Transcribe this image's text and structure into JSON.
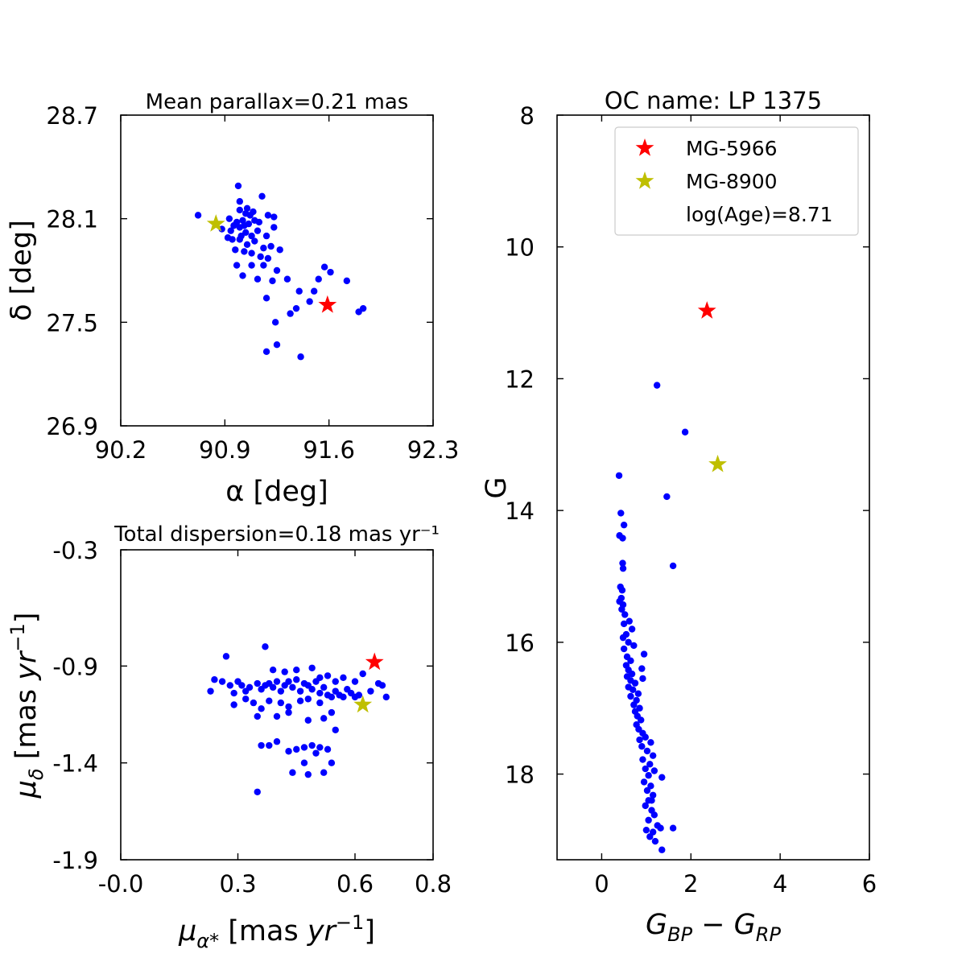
{
  "chart_data": [
    {
      "type": "scatter",
      "id": "position",
      "title": "Mean parallax=0.21 mas",
      "xlabel": "α [deg]",
      "ylabel": "δ [deg]",
      "xlim": [
        90.2,
        92.3
      ],
      "ylim": [
        26.9,
        28.7
      ],
      "xticks": [
        90.2,
        90.9,
        91.6,
        92.3
      ],
      "xtick_labels": [
        "90.2",
        "90.9",
        "91.6",
        "92.3"
      ],
      "yticks": [
        26.9,
        27.5,
        28.1,
        28.7
      ],
      "ytick_labels": [
        "26.9",
        "27.5",
        "28.1",
        "28.7"
      ],
      "series": [
        {
          "name": "members",
          "color": "#0000ff",
          "marker": "circle",
          "points": [
            [
              90.72,
              28.12
            ],
            [
              90.99,
              28.29
            ],
            [
              91.0,
              28.2
            ],
            [
              91.05,
              28.16
            ],
            [
              91.15,
              28.23
            ],
            [
              91.09,
              28.14
            ],
            [
              90.93,
              28.1
            ],
            [
              90.98,
              28.08
            ],
            [
              91.02,
              28.09
            ],
            [
              91.07,
              28.12
            ],
            [
              91.1,
              28.09
            ],
            [
              91.13,
              28.08
            ],
            [
              91.19,
              28.12
            ],
            [
              91.23,
              28.11
            ],
            [
              90.88,
              28.04
            ],
            [
              90.94,
              28.03
            ],
            [
              91.0,
              28.05
            ],
            [
              91.04,
              28.02
            ],
            [
              91.08,
              28.0
            ],
            [
              91.12,
              28.03
            ],
            [
              91.18,
              28.0
            ],
            [
              91.23,
              28.05
            ],
            [
              90.95,
              27.98
            ],
            [
              91.0,
              27.98
            ],
            [
              91.05,
              27.95
            ],
            [
              91.1,
              27.97
            ],
            [
              91.16,
              27.93
            ],
            [
              91.21,
              27.94
            ],
            [
              91.27,
              27.92
            ],
            [
              90.97,
              27.92
            ],
            [
              91.03,
              27.91
            ],
            [
              91.08,
              27.9
            ],
            [
              91.14,
              27.88
            ],
            [
              91.19,
              27.87
            ],
            [
              91.0,
              28.15
            ],
            [
              91.04,
              28.13
            ],
            [
              91.06,
              28.07
            ],
            [
              91.01,
              28.0
            ],
            [
              90.96,
              28.06
            ],
            [
              91.03,
              28.06
            ],
            [
              90.92,
              27.99
            ],
            [
              90.98,
              27.83
            ],
            [
              91.08,
              27.83
            ],
            [
              91.16,
              27.83
            ],
            [
              91.25,
              27.8
            ],
            [
              91.02,
              27.77
            ],
            [
              91.12,
              27.75
            ],
            [
              91.22,
              27.74
            ],
            [
              91.32,
              27.75
            ],
            [
              91.4,
              27.68
            ],
            [
              91.5,
              27.68
            ],
            [
              91.61,
              27.79
            ],
            [
              91.53,
              27.75
            ],
            [
              91.47,
              27.62
            ],
            [
              91.38,
              27.58
            ],
            [
              91.18,
              27.64
            ],
            [
              91.24,
              27.5
            ],
            [
              91.34,
              27.55
            ],
            [
              91.25,
              27.37
            ],
            [
              91.18,
              27.33
            ],
            [
              91.41,
              27.3
            ],
            [
              91.57,
              27.82
            ],
            [
              91.72,
              27.74
            ],
            [
              91.8,
              27.56
            ],
            [
              91.83,
              27.58
            ]
          ]
        },
        {
          "name": "MG-5966",
          "color": "#ff0000",
          "marker": "star",
          "points": [
            [
              91.59,
              27.6
            ]
          ]
        },
        {
          "name": "MG-8900",
          "color": "#bfbf00",
          "marker": "star",
          "points": [
            [
              90.84,
              28.07
            ]
          ]
        }
      ]
    },
    {
      "type": "scatter",
      "id": "proper-motion",
      "title": "Total dispersion=0.18 mas yr⁻¹",
      "xlabel": "μα* [mas yr⁻¹]",
      "ylabel": "μδ [mas yr⁻¹]",
      "xlim": [
        -0.0,
        0.8
      ],
      "ylim": [
        -1.9,
        -0.3
      ],
      "xticks": [
        0.0,
        0.3,
        0.6,
        0.8
      ],
      "xtick_labels": [
        "-0.0",
        "0.3",
        "0.6",
        "0.8"
      ],
      "yticks": [
        -1.9,
        -1.4,
        -0.9,
        -0.3
      ],
      "ytick_labels": [
        "-1.9",
        "-1.4",
        "-0.9",
        "-0.3"
      ],
      "series": [
        {
          "name": "members",
          "color": "#0000ff",
          "marker": "circle",
          "points": [
            [
              0.23,
              -1.03
            ],
            [
              0.24,
              -0.97
            ],
            [
              0.27,
              -0.85
            ],
            [
              0.26,
              -0.98
            ],
            [
              0.28,
              -1.0
            ],
            [
              0.29,
              -1.04
            ],
            [
              0.3,
              -0.98
            ],
            [
              0.31,
              -1.0
            ],
            [
              0.32,
              -1.03
            ],
            [
              0.33,
              -1.01
            ],
            [
              0.35,
              -0.99
            ],
            [
              0.36,
              -1.02
            ],
            [
              0.37,
              -1.0
            ],
            [
              0.38,
              -0.99
            ],
            [
              0.39,
              -1.01
            ],
            [
              0.4,
              -0.98
            ],
            [
              0.41,
              -1.03
            ],
            [
              0.42,
              -1.0
            ],
            [
              0.43,
              -0.98
            ],
            [
              0.44,
              -1.01
            ],
            [
              0.45,
              -0.97
            ],
            [
              0.46,
              -1.03
            ],
            [
              0.47,
              -0.99
            ],
            [
              0.48,
              -1.0
            ],
            [
              0.49,
              -1.02
            ],
            [
              0.5,
              -0.98
            ],
            [
              0.51,
              -1.04
            ],
            [
              0.52,
              -1.01
            ],
            [
              0.53,
              -1.05
            ],
            [
              0.54,
              -1.06
            ],
            [
              0.55,
              -1.03
            ],
            [
              0.56,
              -1.05
            ],
            [
              0.57,
              -1.06
            ],
            [
              0.58,
              -1.02
            ],
            [
              0.59,
              -1.04
            ],
            [
              0.6,
              -1.06
            ],
            [
              0.61,
              -1.05
            ],
            [
              0.64,
              -1.03
            ],
            [
              0.66,
              -0.99
            ],
            [
              0.67,
              -1.0
            ],
            [
              0.68,
              -1.06
            ],
            [
              0.29,
              -1.1
            ],
            [
              0.32,
              -1.07
            ],
            [
              0.34,
              -1.09
            ],
            [
              0.36,
              -1.12
            ],
            [
              0.38,
              -1.08
            ],
            [
              0.41,
              -1.09
            ],
            [
              0.43,
              -1.11
            ],
            [
              0.46,
              -1.08
            ],
            [
              0.48,
              -1.07
            ],
            [
              0.51,
              -1.09
            ],
            [
              0.35,
              -1.16
            ],
            [
              0.4,
              -1.16
            ],
            [
              0.43,
              -1.14
            ],
            [
              0.48,
              -1.18
            ],
            [
              0.52,
              -1.17
            ],
            [
              0.54,
              -1.14
            ],
            [
              0.37,
              -0.8
            ],
            [
              0.39,
              -0.92
            ],
            [
              0.42,
              -0.93
            ],
            [
              0.45,
              -0.92
            ],
            [
              0.49,
              -0.91
            ],
            [
              0.51,
              -0.96
            ],
            [
              0.53,
              -0.95
            ],
            [
              0.55,
              -0.98
            ],
            [
              0.57,
              -0.96
            ],
            [
              0.6,
              -0.98
            ],
            [
              0.62,
              -0.94
            ],
            [
              0.36,
              -1.31
            ],
            [
              0.38,
              -1.31
            ],
            [
              0.4,
              -1.29
            ],
            [
              0.43,
              -1.34
            ],
            [
              0.45,
              -1.33
            ],
            [
              0.47,
              -1.32
            ],
            [
              0.49,
              -1.31
            ],
            [
              0.51,
              -1.32
            ],
            [
              0.53,
              -1.33
            ],
            [
              0.54,
              -1.4
            ],
            [
              0.47,
              -1.4
            ],
            [
              0.5,
              -1.35
            ],
            [
              0.55,
              -1.23
            ],
            [
              0.44,
              -1.45
            ],
            [
              0.48,
              -1.46
            ],
            [
              0.52,
              -1.45
            ],
            [
              0.35,
              -1.55
            ]
          ]
        },
        {
          "name": "MG-5966",
          "color": "#ff0000",
          "marker": "star",
          "points": [
            [
              0.65,
              -0.88
            ]
          ]
        },
        {
          "name": "MG-8900",
          "color": "#bfbf00",
          "marker": "star",
          "points": [
            [
              0.62,
              -1.1
            ]
          ]
        }
      ]
    },
    {
      "type": "scatter",
      "id": "cmd",
      "title": "OC name: LP 1375",
      "xlabel": "GBP − GRP",
      "ylabel": "G",
      "xlim": [
        -1.0,
        6.0
      ],
      "ylim": [
        19.3,
        8.0
      ],
      "y_inverted": true,
      "xticks": [
        0,
        2,
        4,
        6
      ],
      "xtick_labels": [
        "0",
        "2",
        "4",
        "6"
      ],
      "yticks": [
        8,
        10,
        12,
        14,
        16,
        18
      ],
      "ytick_labels": [
        "8",
        "10",
        "12",
        "14",
        "16",
        "18"
      ],
      "legend": {
        "placement": "upper-right",
        "entries": [
          {
            "label": "MG-5966",
            "color": "#ff0000",
            "marker": "star"
          },
          {
            "label": "MG-8900",
            "color": "#bfbf00",
            "marker": "star"
          },
          {
            "label": "log(Age)=8.71",
            "color": "",
            "marker": "none"
          }
        ]
      },
      "series": [
        {
          "name": "members",
          "color": "#0000ff",
          "marker": "circle",
          "points": [
            [
              1.24,
              12.1
            ],
            [
              1.87,
              12.81
            ],
            [
              0.39,
              13.47
            ],
            [
              1.46,
              13.79
            ],
            [
              0.43,
              14.04
            ],
            [
              0.4,
              14.38
            ],
            [
              0.47,
              14.42
            ],
            [
              0.5,
              14.22
            ],
            [
              1.6,
              14.84
            ],
            [
              0.47,
              14.8
            ],
            [
              0.48,
              14.88
            ],
            [
              0.42,
              15.16
            ],
            [
              0.46,
              15.21
            ],
            [
              0.44,
              15.33
            ],
            [
              0.4,
              15.38
            ],
            [
              0.48,
              15.43
            ],
            [
              0.45,
              15.5
            ],
            [
              0.52,
              15.58
            ],
            [
              0.5,
              15.72
            ],
            [
              0.62,
              15.68
            ],
            [
              0.68,
              15.8
            ],
            [
              0.55,
              15.88
            ],
            [
              0.48,
              15.93
            ],
            [
              0.6,
              16.0
            ],
            [
              0.72,
              16.05
            ],
            [
              0.5,
              16.1
            ],
            [
              0.57,
              16.22
            ],
            [
              0.65,
              16.28
            ],
            [
              0.95,
              16.18
            ],
            [
              0.55,
              16.35
            ],
            [
              0.6,
              16.42
            ],
            [
              0.68,
              16.48
            ],
            [
              0.9,
              16.4
            ],
            [
              0.57,
              16.52
            ],
            [
              0.65,
              16.58
            ],
            [
              0.75,
              16.62
            ],
            [
              0.92,
              16.55
            ],
            [
              0.6,
              16.68
            ],
            [
              0.7,
              16.72
            ],
            [
              0.82,
              16.78
            ],
            [
              0.65,
              16.82
            ],
            [
              0.78,
              16.88
            ],
            [
              0.72,
              16.95
            ],
            [
              0.85,
              17.0
            ],
            [
              0.75,
              17.05
            ],
            [
              0.8,
              17.12
            ],
            [
              0.88,
              17.18
            ],
            [
              0.78,
              17.25
            ],
            [
              0.83,
              17.32
            ],
            [
              0.92,
              17.38
            ],
            [
              0.98,
              17.44
            ],
            [
              0.85,
              17.48
            ],
            [
              1.1,
              17.52
            ],
            [
              0.9,
              17.58
            ],
            [
              1.02,
              17.65
            ],
            [
              1.15,
              17.72
            ],
            [
              0.92,
              17.78
            ],
            [
              1.08,
              17.85
            ],
            [
              0.98,
              17.92
            ],
            [
              1.18,
              17.95
            ],
            [
              1.05,
              18.02
            ],
            [
              1.35,
              18.05
            ],
            [
              0.95,
              18.12
            ],
            [
              1.1,
              18.18
            ],
            [
              1.02,
              18.25
            ],
            [
              1.15,
              18.32
            ],
            [
              1.05,
              18.4
            ],
            [
              0.98,
              18.48
            ],
            [
              1.12,
              18.55
            ],
            [
              1.18,
              18.62
            ],
            [
              1.05,
              18.7
            ],
            [
              1.25,
              18.78
            ],
            [
              1.0,
              18.85
            ],
            [
              1.32,
              18.82
            ],
            [
              1.15,
              18.88
            ],
            [
              1.6,
              18.82
            ],
            [
              1.08,
              18.95
            ],
            [
              1.2,
              19.02
            ],
            [
              1.35,
              19.15
            ],
            [
              1.12,
              18.4
            ]
          ]
        },
        {
          "name": "MG-5966",
          "color": "#ff0000",
          "marker": "star",
          "points": [
            [
              2.36,
              10.97
            ]
          ]
        },
        {
          "name": "MG-8900",
          "color": "#bfbf00",
          "marker": "star",
          "points": [
            [
              2.6,
              13.3
            ]
          ]
        }
      ]
    }
  ]
}
